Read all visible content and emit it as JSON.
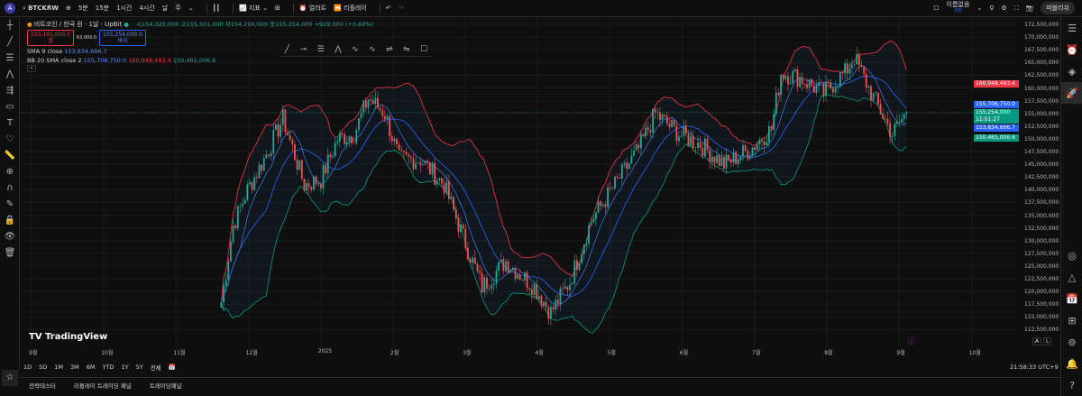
{
  "topbar": {
    "avatar": "A",
    "symbol": "BTCKRW",
    "intervals": [
      "5분",
      "15분",
      "1시간",
      "4시간",
      "날",
      "주"
    ],
    "indicators": "지표",
    "alert": "얼러트",
    "replay": "리플레이",
    "layout_name": "이름없음",
    "layout_sub": "저장",
    "publish": "퍼블리쉬"
  },
  "legend": {
    "title": "비트코인 / 한국 원 · 1날 · UpBit",
    "ohlc": "시154,325,000 고155,501,000 저154,200,000 종155,254,000 +929,000 (+0.60%)",
    "sell_price": "155,191,000.0",
    "sell_label": "셀",
    "spread": "63,000.0",
    "buy_price": "155,254,000.0",
    "buy_label": "바이",
    "sma_label": "SMA 9 close",
    "sma_value": "153,834,666.7",
    "bb_label": "BB 20 SMA close 2",
    "bb_basis": "155,706,750.0",
    "bb_upper": "160,948,493.4",
    "bb_lower": "150,465,006.6"
  },
  "price_axis": [
    "172,500,000",
    "170,000,000",
    "167,500,000",
    "165,000,000",
    "162,500,000",
    "160,000,000",
    "157,500,000",
    "155,000,000",
    "152,500,000",
    "150,000,000",
    "147,500,000",
    "145,000,000",
    "142,500,000",
    "140,000,000",
    "137,500,000",
    "135,000,000",
    "132,500,000",
    "130,000,000",
    "127,500,000",
    "125,000,000",
    "122,500,000",
    "120,000,000",
    "117,500,000",
    "115,000,000",
    "112,500,000"
  ],
  "price_tags": {
    "upper": "160,948,493.4",
    "basis": "155,706,750.0",
    "last": "155,254,000",
    "countdown": "11:01:27",
    "sma": "153,834,666.7",
    "lower": "150,465,006.6"
  },
  "time_axis": [
    "9월",
    "10월",
    "11월",
    "12월",
    "2025",
    "2월",
    "3월",
    "4월",
    "5월",
    "6월",
    "7월",
    "8월",
    "9월",
    "10월"
  ],
  "range_buttons": [
    "1D",
    "5D",
    "1M",
    "3M",
    "6M",
    "YTD",
    "1Y",
    "5Y",
    "전체"
  ],
  "clock": "21:58:33 UTC+9",
  "scale_buttons": [
    "A",
    "L"
  ],
  "bottom_tabs": [
    "전략테스터",
    "리플레이 트레이딩 패널",
    "트레이딩패널"
  ],
  "brand": "TradingView",
  "colors": {
    "up": "#26a69a",
    "down": "#ef5350",
    "sma": "#2962ff",
    "bb_upper": "#f23645",
    "bb_lower": "#089981",
    "bb_basis": "#2962ff"
  },
  "chart_data": {
    "type": "candlestick",
    "unit": "KRW (millions)",
    "path_dates": [
      "2024-11-20",
      "2024-11-25",
      "2024-12-01",
      "2024-12-08",
      "2024-12-16",
      "2024-12-25",
      "2025-01-01",
      "2025-01-08",
      "2025-01-15",
      "2025-01-21",
      "2025-01-28",
      "2025-02-03",
      "2025-02-12",
      "2025-02-22",
      "2025-03-01",
      "2025-03-10",
      "2025-03-20",
      "2025-04-01",
      "2025-04-08",
      "2025-04-16",
      "2025-04-25",
      "2025-05-05",
      "2025-05-15",
      "2025-05-22",
      "2025-06-01",
      "2025-06-10",
      "2025-06-20",
      "2025-07-01",
      "2025-07-10",
      "2025-07-14",
      "2025-07-22",
      "2025-08-01",
      "2025-08-10",
      "2025-08-14",
      "2025-08-20",
      "2025-08-30",
      "2025-09-05"
    ],
    "path_closes": [
      118,
      133,
      140,
      146,
      154,
      141,
      142,
      150,
      151,
      158,
      155,
      146,
      146,
      141,
      132,
      121,
      126,
      121,
      116,
      122,
      134,
      141,
      148,
      155,
      151,
      149,
      145,
      148,
      152,
      163,
      162,
      159,
      163,
      166,
      160,
      151,
      155.25
    ],
    "ylim": [
      111,
      174
    ]
  }
}
